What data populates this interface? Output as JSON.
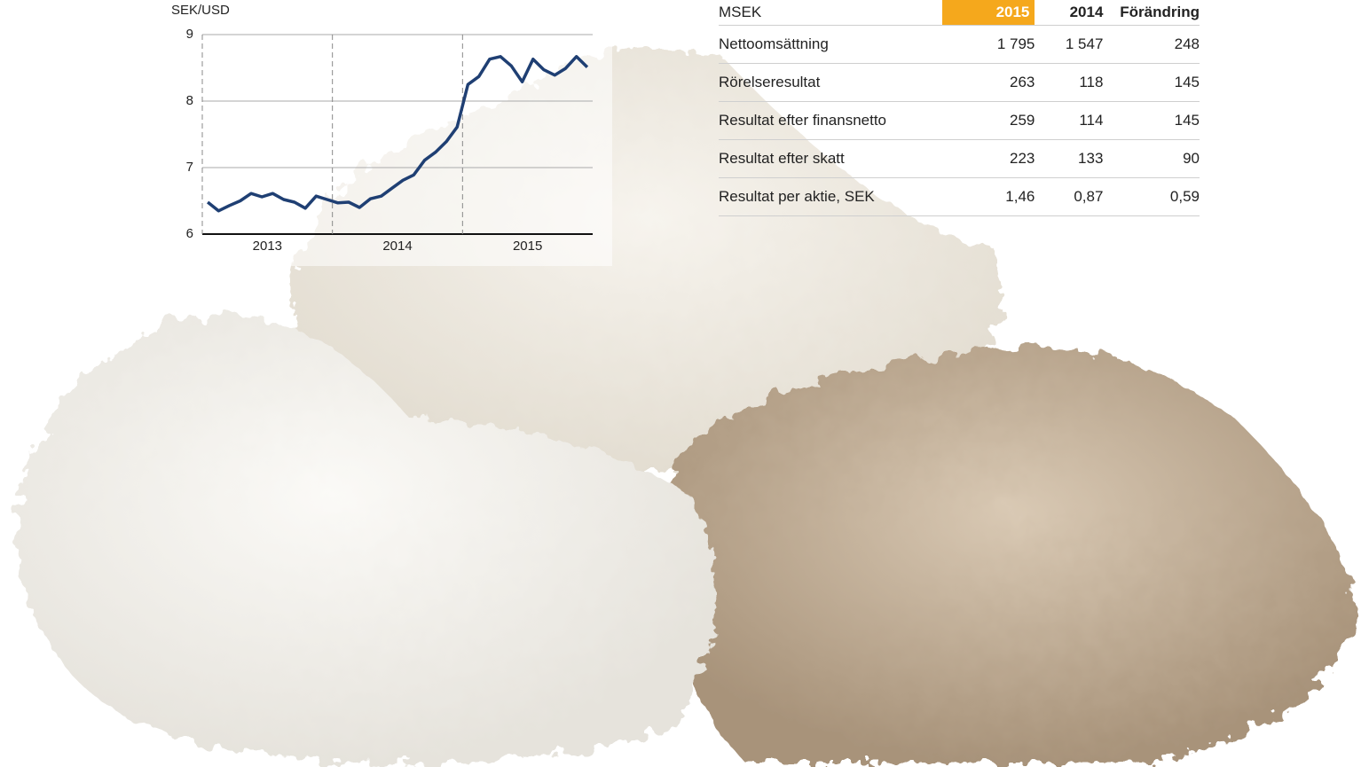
{
  "chart_data": {
    "type": "line",
    "y_label": "SEK/USD",
    "ylim": [
      6,
      9
    ],
    "yticks": [
      6,
      7,
      8,
      9
    ],
    "grid": true,
    "color": "#1f3f73",
    "x_groups": [
      {
        "label": "2013",
        "values": [
          6.48,
          6.35,
          6.43,
          6.5,
          6.61,
          6.56,
          6.61,
          6.52,
          6.48,
          6.39,
          6.57,
          6.52
        ]
      },
      {
        "label": "2014",
        "values": [
          6.47,
          6.48,
          6.4,
          6.53,
          6.57,
          6.69,
          6.81,
          6.89,
          7.11,
          7.23,
          7.39,
          7.61
        ]
      },
      {
        "label": "2015",
        "values": [
          8.25,
          8.37,
          8.63,
          8.67,
          8.53,
          8.29,
          8.63,
          8.47,
          8.39,
          8.49,
          8.67,
          8.51
        ]
      }
    ]
  },
  "table": {
    "header": [
      "MSEK",
      "2015",
      "2014",
      "Förändring"
    ],
    "rows": [
      [
        "Nettoomsättning",
        "1 795",
        "1 547",
        "248"
      ],
      [
        "Rörelseresultat",
        "263",
        "118",
        "145"
      ],
      [
        "Resultat efter finansnetto",
        "259",
        "114",
        "145"
      ],
      [
        "Resultat efter skatt",
        "223",
        "133",
        "90"
      ],
      [
        "Resultat per aktie, SEK",
        "1,46",
        "0,87",
        "0,59"
      ]
    ]
  }
}
